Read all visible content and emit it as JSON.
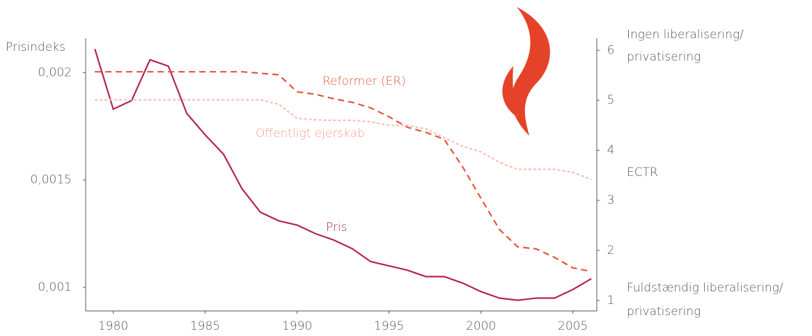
{
  "chart_data": {
    "type": "line",
    "ylabel": "Prisindeks",
    "y2label": "ECTR",
    "annotations": [
      [
        "Ingen liberalisering/",
        "privatisering"
      ],
      [
        "Fuldstændig liberalisering/",
        "privatisering"
      ]
    ],
    "x": [
      1979,
      1980,
      1981,
      1982,
      1983,
      1984,
      1985,
      1986,
      1987,
      1988,
      1989,
      1990,
      1991,
      1992,
      1993,
      1994,
      1995,
      1996,
      1997,
      1998,
      1999,
      2000,
      2001,
      2002,
      2003,
      2004,
      2005,
      2006
    ],
    "xlim": [
      1978.5,
      2006.3
    ],
    "xticks": [
      1980,
      1985,
      1990,
      1995,
      2000,
      2005
    ],
    "ylim": [
      0.00089,
      0.00216
    ],
    "yticks": [
      {
        "value": 0.001,
        "label": "0,001"
      },
      {
        "value": 0.0015,
        "label": "0,0015"
      },
      {
        "value": 0.002,
        "label": "0,002"
      }
    ],
    "y2lim": [
      0.79,
      6.24
    ],
    "y2ticks": [
      1,
      2,
      3,
      4,
      5,
      6
    ],
    "series": [
      {
        "name": "Pris",
        "color": "#b3254f",
        "dash": "none",
        "values": [
          0.00211,
          0.00183,
          0.00187,
          0.00206,
          0.00203,
          0.00181,
          0.00171,
          0.00162,
          0.00146,
          0.00135,
          0.00131,
          0.00129,
          0.00125,
          0.00122,
          0.00118,
          0.00112,
          0.0011,
          0.00108,
          0.00105,
          0.00105,
          0.00102,
          0.00098,
          0.00095,
          0.00094,
          0.00095,
          0.00095,
          0.00099,
          0.00104
        ]
      },
      {
        "name": "Reformer (ER)",
        "color": "#e4553b",
        "dash": "9 6",
        "axis": "y2",
        "values": [
          5.57,
          5.57,
          5.57,
          5.57,
          5.57,
          5.57,
          5.57,
          5.57,
          5.57,
          5.54,
          5.51,
          5.17,
          5.12,
          5.03,
          4.96,
          4.85,
          4.67,
          4.46,
          4.36,
          4.22,
          3.67,
          3.04,
          2.42,
          2.07,
          2.03,
          1.86,
          1.65,
          1.58
        ]
      },
      {
        "name": "Offentligt ejerskab",
        "color": "#f6c0b6",
        "dash": "4 3",
        "axis": "y2",
        "values": [
          5.01,
          5.01,
          5.01,
          5.01,
          5.01,
          5.01,
          5.01,
          5.01,
          5.01,
          5.01,
          4.92,
          4.64,
          4.61,
          4.6,
          4.6,
          4.57,
          4.5,
          4.5,
          4.43,
          4.25,
          4.08,
          3.97,
          3.76,
          3.62,
          3.62,
          3.62,
          3.56,
          3.42
        ]
      }
    ]
  }
}
